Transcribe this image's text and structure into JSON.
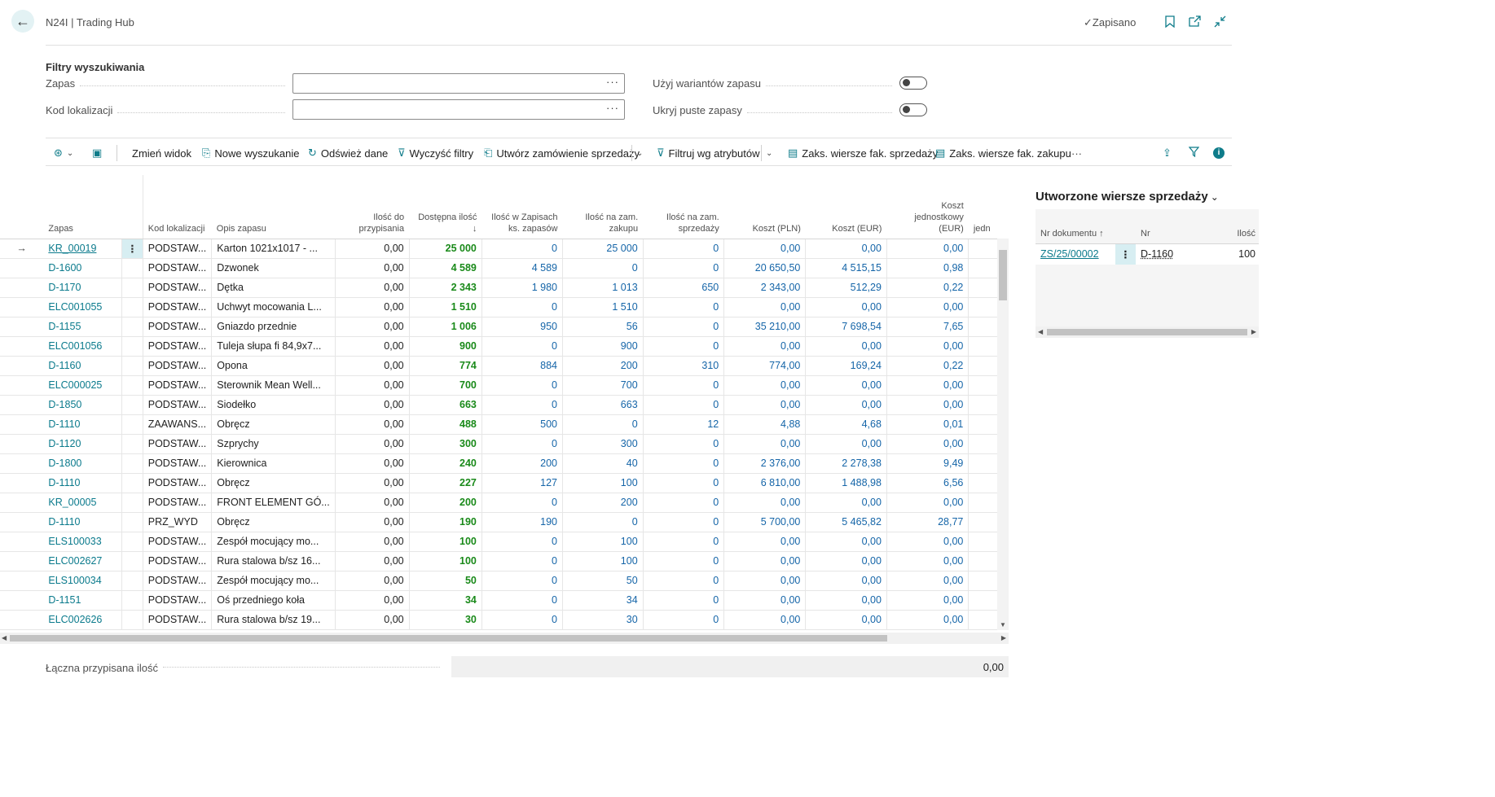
{
  "header": {
    "title": "N24I | Trading Hub",
    "saved": "✓Zapisano"
  },
  "filters": {
    "title": "Filtry wyszukiwania",
    "stock_label": "Zapas",
    "location_label": "Kod lokalizacji",
    "variants_label": "Użyj wariantów zapasu",
    "hide_empty_label": "Ukryj puste zapasy",
    "stock_value": "",
    "location_value": "",
    "ellipsis": "···",
    "variants_on": false,
    "hide_empty_on": false
  },
  "toolbar": {
    "change_view": "Zmień widok",
    "new_search": "Nowe wyszukanie",
    "refresh": "Odśwież dane",
    "clear_filters": "Wyczyść filtry",
    "create_order": "Utwórz zamówienie sprzedaży",
    "filter_attrs": "Filtruj wg atrybutów",
    "sales_inv_lines": "Zaks. wiersze fak. sprzedaży",
    "purch_inv_lines": "Zaks. wiersze fak. zakupu",
    "more": "···"
  },
  "grid": {
    "headers": {
      "stock": "Zapas",
      "location": "Kod lokalizacji",
      "description": "Opis zapasu",
      "to_assign": "Ilość do przypisania",
      "available": "Dostępna ilość ↓",
      "in_stock_book": "Ilość w Zapisach ks. zapasów",
      "on_purchase": "Ilość na zam. zakupu",
      "on_sales": "Ilość na zam. sprzedaży",
      "cost_pln": "Koszt (PLN)",
      "cost_eur": "Koszt (EUR)",
      "unit_cost_eur": "Koszt jednostkowy (EUR)",
      "extra": "jedn"
    },
    "rows": [
      {
        "stock": "KR_00019",
        "location": "PODSTAW...",
        "description": "Karton 1021x1017 - ...",
        "to_assign": "0,00",
        "available": "25 000",
        "in_book": "0",
        "on_purchase": "25 000",
        "on_sales": "0",
        "cost_pln": "0,00",
        "cost_eur": "0,00",
        "unit_cost": "0,00"
      },
      {
        "stock": "D-1600",
        "location": "PODSTAW...",
        "description": "Dzwonek",
        "to_assign": "0,00",
        "available": "4 589",
        "in_book": "4 589",
        "on_purchase": "0",
        "on_sales": "0",
        "cost_pln": "20 650,50",
        "cost_eur": "4 515,15",
        "unit_cost": "0,98"
      },
      {
        "stock": "D-1170",
        "location": "PODSTAW...",
        "description": "Dętka",
        "to_assign": "0,00",
        "available": "2 343",
        "in_book": "1 980",
        "on_purchase": "1 013",
        "on_sales": "650",
        "cost_pln": "2 343,00",
        "cost_eur": "512,29",
        "unit_cost": "0,22"
      },
      {
        "stock": "ELC001055",
        "location": "PODSTAW...",
        "description": "Uchwyt mocowania L...",
        "to_assign": "0,00",
        "available": "1 510",
        "in_book": "0",
        "on_purchase": "1 510",
        "on_sales": "0",
        "cost_pln": "0,00",
        "cost_eur": "0,00",
        "unit_cost": "0,00"
      },
      {
        "stock": "D-1155",
        "location": "PODSTAW...",
        "description": "Gniazdo przednie",
        "to_assign": "0,00",
        "available": "1 006",
        "in_book": "950",
        "on_purchase": "56",
        "on_sales": "0",
        "cost_pln": "35 210,00",
        "cost_eur": "7 698,54",
        "unit_cost": "7,65"
      },
      {
        "stock": "ELC001056",
        "location": "PODSTAW...",
        "description": "Tuleja słupa fi 84,9x7...",
        "to_assign": "0,00",
        "available": "900",
        "in_book": "0",
        "on_purchase": "900",
        "on_sales": "0",
        "cost_pln": "0,00",
        "cost_eur": "0,00",
        "unit_cost": "0,00"
      },
      {
        "stock": "D-1160",
        "location": "PODSTAW...",
        "description": "Opona",
        "to_assign": "0,00",
        "available": "774",
        "in_book": "884",
        "on_purchase": "200",
        "on_sales": "310",
        "cost_pln": "774,00",
        "cost_eur": "169,24",
        "unit_cost": "0,22"
      },
      {
        "stock": "ELC000025",
        "location": "PODSTAW...",
        "description": "Sterownik Mean Well...",
        "to_assign": "0,00",
        "available": "700",
        "in_book": "0",
        "on_purchase": "700",
        "on_sales": "0",
        "cost_pln": "0,00",
        "cost_eur": "0,00",
        "unit_cost": "0,00"
      },
      {
        "stock": "D-1850",
        "location": "PODSTAW...",
        "description": "Siodełko",
        "to_assign": "0,00",
        "available": "663",
        "in_book": "0",
        "on_purchase": "663",
        "on_sales": "0",
        "cost_pln": "0,00",
        "cost_eur": "0,00",
        "unit_cost": "0,00"
      },
      {
        "stock": "D-1110",
        "location": "ZAAWANS...",
        "description": "Obręcz",
        "to_assign": "0,00",
        "available": "488",
        "in_book": "500",
        "on_purchase": "0",
        "on_sales": "12",
        "cost_pln": "4,88",
        "cost_eur": "4,68",
        "unit_cost": "0,01"
      },
      {
        "stock": "D-1120",
        "location": "PODSTAW...",
        "description": "Szprychy",
        "to_assign": "0,00",
        "available": "300",
        "in_book": "0",
        "on_purchase": "300",
        "on_sales": "0",
        "cost_pln": "0,00",
        "cost_eur": "0,00",
        "unit_cost": "0,00"
      },
      {
        "stock": "D-1800",
        "location": "PODSTAW...",
        "description": "Kierownica",
        "to_assign": "0,00",
        "available": "240",
        "in_book": "200",
        "on_purchase": "40",
        "on_sales": "0",
        "cost_pln": "2 376,00",
        "cost_eur": "2 278,38",
        "unit_cost": "9,49"
      },
      {
        "stock": "D-1110",
        "location": "PODSTAW...",
        "description": "Obręcz",
        "to_assign": "0,00",
        "available": "227",
        "in_book": "127",
        "on_purchase": "100",
        "on_sales": "0",
        "cost_pln": "6 810,00",
        "cost_eur": "1 488,98",
        "unit_cost": "6,56"
      },
      {
        "stock": "KR_00005",
        "location": "PODSTAW...",
        "description": "FRONT ELEMENT GÓ...",
        "to_assign": "0,00",
        "available": "200",
        "in_book": "0",
        "on_purchase": "200",
        "on_sales": "0",
        "cost_pln": "0,00",
        "cost_eur": "0,00",
        "unit_cost": "0,00"
      },
      {
        "stock": "D-1110",
        "location": "PRZ_WYD",
        "description": "Obręcz",
        "to_assign": "0,00",
        "available": "190",
        "in_book": "190",
        "on_purchase": "0",
        "on_sales": "0",
        "cost_pln": "5 700,00",
        "cost_eur": "5 465,82",
        "unit_cost": "28,77"
      },
      {
        "stock": "ELS100033",
        "location": "PODSTAW...",
        "description": "Zespół mocujący mo...",
        "to_assign": "0,00",
        "available": "100",
        "in_book": "0",
        "on_purchase": "100",
        "on_sales": "0",
        "cost_pln": "0,00",
        "cost_eur": "0,00",
        "unit_cost": "0,00"
      },
      {
        "stock": "ELC002627",
        "location": "PODSTAW...",
        "description": "Rura stalowa b/sz 16...",
        "to_assign": "0,00",
        "available": "100",
        "in_book": "0",
        "on_purchase": "100",
        "on_sales": "0",
        "cost_pln": "0,00",
        "cost_eur": "0,00",
        "unit_cost": "0,00"
      },
      {
        "stock": "ELS100034",
        "location": "PODSTAW...",
        "description": "Zespół mocujący mo...",
        "to_assign": "0,00",
        "available": "50",
        "in_book": "0",
        "on_purchase": "50",
        "on_sales": "0",
        "cost_pln": "0,00",
        "cost_eur": "0,00",
        "unit_cost": "0,00"
      },
      {
        "stock": "D-1151",
        "location": "PODSTAW...",
        "description": "Oś przedniego koła",
        "to_assign": "0,00",
        "available": "34",
        "in_book": "0",
        "on_purchase": "34",
        "on_sales": "0",
        "cost_pln": "0,00",
        "cost_eur": "0,00",
        "unit_cost": "0,00"
      },
      {
        "stock": "ELC002626",
        "location": "PODSTAW...",
        "description": "Rura stalowa b/sz 19...",
        "to_assign": "0,00",
        "available": "30",
        "in_book": "0",
        "on_purchase": "30",
        "on_sales": "0",
        "cost_pln": "0,00",
        "cost_eur": "0,00",
        "unit_cost": "0,00"
      }
    ]
  },
  "footer": {
    "total_label": "Łączna przypisana ilość",
    "total_value": "0,00"
  },
  "right_panel": {
    "title": "Utworzone wiersze sprzedaży",
    "headers": {
      "doc_no": "Nr dokumentu ↑",
      "no": "Nr",
      "qty": "Ilość"
    },
    "rows": [
      {
        "doc_no": "ZS/25/00002",
        "no": "D-1160",
        "qty": "100"
      }
    ]
  },
  "colors": {
    "accent": "#0f7c8a",
    "link": "#0a7a8c",
    "available_green": "#1a8a1a",
    "numeric_blue": "#1565a8"
  }
}
